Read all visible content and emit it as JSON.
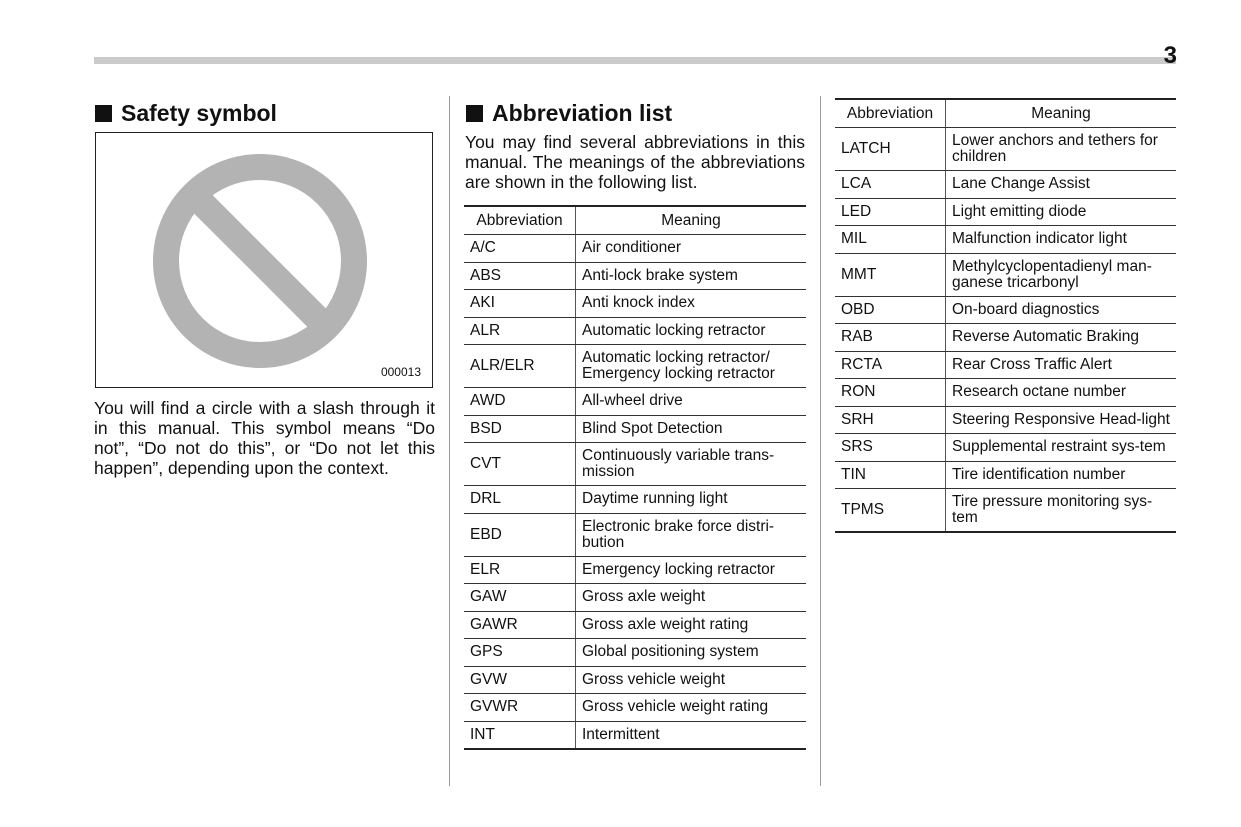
{
  "page_number": "3",
  "safety": {
    "heading": "Safety symbol",
    "figure_code": "000013",
    "text": "You will find a circle with a slash through it in this manual. This symbol means “Do not”, “Do not do this”, or “Do not let this happen”, depending upon the context."
  },
  "abbrev": {
    "heading": "Abbreviation list",
    "intro": "You may find several abbreviations in this manual. The meanings of the abbreviations are shown in the following list.",
    "col_abbr": "Abbreviation",
    "col_meaning": "Meaning",
    "table1": [
      [
        "A/C",
        "Air conditioner"
      ],
      [
        "ABS",
        "Anti-lock brake system"
      ],
      [
        "AKI",
        "Anti knock index"
      ],
      [
        "ALR",
        "Automatic locking retractor"
      ],
      [
        "ALR/ELR",
        "Automatic locking retractor/ Emergency locking retractor"
      ],
      [
        "AWD",
        "All-wheel drive"
      ],
      [
        "BSD",
        "Blind Spot Detection"
      ],
      [
        "CVT",
        "Continuously variable trans-mission"
      ],
      [
        "DRL",
        "Daytime running light"
      ],
      [
        "EBD",
        "Electronic brake force distri-bution"
      ],
      [
        "ELR",
        "Emergency locking retractor"
      ],
      [
        "GAW",
        "Gross axle weight"
      ],
      [
        "GAWR",
        "Gross axle weight rating"
      ],
      [
        "GPS",
        "Global positioning system"
      ],
      [
        "GVW",
        "Gross vehicle weight"
      ],
      [
        "GVWR",
        "Gross vehicle weight rating"
      ],
      [
        "INT",
        "Intermittent"
      ]
    ],
    "table2": [
      [
        "LATCH",
        "Lower anchors and tethers for children"
      ],
      [
        "LCA",
        "Lane Change Assist"
      ],
      [
        "LED",
        "Light emitting diode"
      ],
      [
        "MIL",
        "Malfunction indicator light"
      ],
      [
        "MMT",
        "Methylcyclopentadienyl man-ganese tricarbonyl"
      ],
      [
        "OBD",
        "On-board diagnostics"
      ],
      [
        "RAB",
        "Reverse Automatic Braking"
      ],
      [
        "RCTA",
        "Rear Cross Traffic Alert"
      ],
      [
        "RON",
        "Research octane number"
      ],
      [
        "SRH",
        "Steering Responsive Head-light"
      ],
      [
        "SRS",
        "Supplemental restraint sys-tem"
      ],
      [
        "TIN",
        "Tire identification number"
      ],
      [
        "TPMS",
        "Tire pressure monitoring sys-tem"
      ]
    ]
  }
}
